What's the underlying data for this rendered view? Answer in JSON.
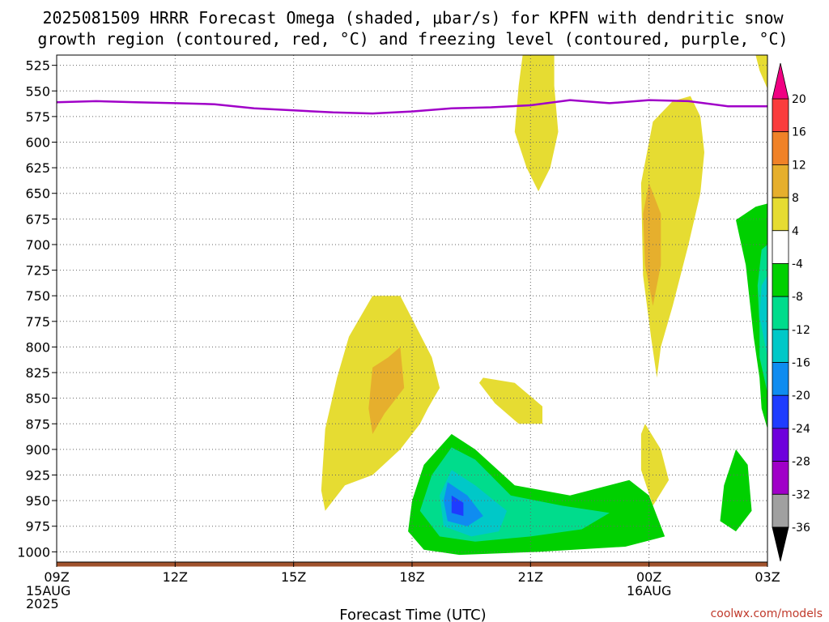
{
  "title_line1": "2025081509 HRRR Forecast Omega (shaded, μbar/s) for KPFN with dendritic snow",
  "title_line2": "growth region (contoured, red, °C) and freezing level (contoured, purple, °C)",
  "xlabel": "Forecast Time (UTC)",
  "credit": "coolwx.com/models",
  "chart_data": {
    "type": "contour",
    "title": "2025081509 HRRR Forecast Omega (shaded, μbar/s) for KPFN with dendritic snow growth region (contoured, red, °C) and freezing level (contoured, purple, °C)",
    "xlabel": "Forecast Time (UTC)",
    "ylabel": "",
    "xlim": [
      0,
      18
    ],
    "ylim": [
      1010,
      515
    ],
    "y_ticks": [
      525,
      550,
      575,
      600,
      625,
      650,
      675,
      700,
      725,
      750,
      775,
      800,
      825,
      850,
      875,
      900,
      925,
      950,
      975,
      1000
    ],
    "x_ticks": [
      {
        "x": 0,
        "label": "09Z",
        "sub": [
          "15AUG",
          "2025"
        ]
      },
      {
        "x": 3,
        "label": "12Z",
        "sub": []
      },
      {
        "x": 6,
        "label": "15Z",
        "sub": []
      },
      {
        "x": 9,
        "label": "18Z",
        "sub": []
      },
      {
        "x": 12,
        "label": "21Z",
        "sub": []
      },
      {
        "x": 15,
        "label": "00Z",
        "sub": [
          "16AUG"
        ]
      },
      {
        "x": 18,
        "label": "03Z",
        "sub": []
      }
    ],
    "freezing_level": {
      "x": [
        0,
        1,
        2,
        3,
        4,
        5,
        6,
        7,
        8,
        9,
        10,
        11,
        12,
        13,
        14,
        15,
        16,
        17,
        18
      ],
      "y": [
        561,
        560,
        561,
        562,
        563,
        567,
        569,
        571,
        572,
        570,
        567,
        566,
        564,
        559,
        562,
        559,
        560,
        565,
        565
      ]
    },
    "terrain_pressure": 1012,
    "omega_levels": [
      -36,
      -32,
      -28,
      -24,
      -20,
      -16,
      -12,
      -8,
      -4,
      4,
      8,
      12,
      16,
      20
    ],
    "omega_colors": [
      "#000000",
      "#a0a0a0",
      "#a000c8",
      "#6e00dc",
      "#1e3cff",
      "#0f8cf0",
      "#00c8c8",
      "#00dc8c",
      "#00d000",
      "#ffffff",
      "#e6dc32",
      "#e6af2d",
      "#f08228",
      "#fa3c3c",
      "#f00082"
    ],
    "omega_regions": [
      {
        "name": "upward 4-8 near 20Z upper",
        "level": 4,
        "points": [
          [
            11.8,
            515
          ],
          [
            12.6,
            515
          ],
          [
            12.6,
            545
          ],
          [
            12.7,
            590
          ],
          [
            12.5,
            625
          ],
          [
            12.2,
            648
          ],
          [
            11.9,
            625
          ],
          [
            11.6,
            590
          ],
          [
            11.7,
            545
          ]
        ]
      },
      {
        "name": "upward 4-8 near 03Z top",
        "level": 4,
        "points": [
          [
            17.7,
            515
          ],
          [
            18,
            515
          ],
          [
            18,
            548
          ],
          [
            17.8,
            530
          ]
        ]
      },
      {
        "name": "upward 4-8 near 00Z-01Z",
        "level": 4,
        "points": [
          [
            16.05,
            555
          ],
          [
            16.3,
            575
          ],
          [
            16.4,
            610
          ],
          [
            16.3,
            650
          ],
          [
            16.0,
            700
          ],
          [
            15.6,
            760
          ],
          [
            15.3,
            800
          ],
          [
            15.2,
            830
          ],
          [
            15.05,
            790
          ],
          [
            14.85,
            730
          ],
          [
            14.8,
            640
          ],
          [
            15.1,
            580
          ],
          [
            15.6,
            560
          ]
        ]
      },
      {
        "name": "upward 8-12 near 00Z",
        "level": 8,
        "points": [
          [
            15.0,
            640
          ],
          [
            15.3,
            670
          ],
          [
            15.3,
            720
          ],
          [
            15.1,
            760
          ],
          [
            14.9,
            720
          ],
          [
            14.85,
            670
          ]
        ]
      },
      {
        "name": "upward 4-8 near 17Z",
        "level": 4,
        "points": [
          [
            8.0,
            750
          ],
          [
            8.7,
            750
          ],
          [
            9.5,
            810
          ],
          [
            9.7,
            840
          ],
          [
            9.4,
            860
          ],
          [
            9.2,
            875
          ],
          [
            8.7,
            900
          ],
          [
            8.0,
            925
          ],
          [
            7.3,
            935
          ],
          [
            6.8,
            960
          ],
          [
            6.7,
            940
          ],
          [
            6.8,
            880
          ],
          [
            7.1,
            830
          ],
          [
            7.4,
            790
          ]
        ]
      },
      {
        "name": "upward 8-12 near 17Z",
        "level": 8,
        "points": [
          [
            8.7,
            800
          ],
          [
            8.8,
            840
          ],
          [
            8.3,
            865
          ],
          [
            8.0,
            885
          ],
          [
            7.9,
            860
          ],
          [
            8.0,
            820
          ],
          [
            8.4,
            810
          ]
        ]
      },
      {
        "name": "upward 4-8 near 20Z low",
        "level": 4,
        "points": [
          [
            10.8,
            830
          ],
          [
            11.6,
            835
          ],
          [
            12.3,
            858
          ],
          [
            12.3,
            875
          ],
          [
            11.7,
            875
          ],
          [
            11.1,
            855
          ],
          [
            10.7,
            835
          ]
        ]
      },
      {
        "name": "upward 4-8 near 00Z low",
        "level": 4,
        "points": [
          [
            14.9,
            875
          ],
          [
            15.3,
            900
          ],
          [
            15.5,
            930
          ],
          [
            15.1,
            955
          ],
          [
            14.8,
            920
          ],
          [
            14.8,
            885
          ]
        ]
      },
      {
        "name": "downward -4 to -8 near 03Z",
        "level": -4,
        "points": [
          [
            17.7,
            663
          ],
          [
            18,
            660
          ],
          [
            18,
            880
          ],
          [
            17.85,
            860
          ],
          [
            17.8,
            830
          ],
          [
            17.65,
            790
          ],
          [
            17.45,
            720
          ],
          [
            17.2,
            676
          ]
        ]
      },
      {
        "name": "downward -8 to -12 near 03Z",
        "level": -8,
        "points": [
          [
            17.85,
            705
          ],
          [
            18,
            700
          ],
          [
            18,
            845
          ],
          [
            17.8,
            810
          ],
          [
            17.8,
            780
          ],
          [
            17.75,
            740
          ]
        ]
      },
      {
        "name": "downward -12 to -16 near 03Z",
        "level": -12,
        "points": [
          [
            17.85,
            740
          ],
          [
            18,
            730
          ],
          [
            18,
            810
          ],
          [
            17.9,
            790
          ],
          [
            17.8,
            770
          ]
        ]
      },
      {
        "name": "downward -4 to -8 near 02Z",
        "level": -4,
        "points": [
          [
            17.2,
            900
          ],
          [
            17.5,
            915
          ],
          [
            17.6,
            960
          ],
          [
            17.2,
            980
          ],
          [
            16.8,
            970
          ],
          [
            16.9,
            935
          ]
        ]
      },
      {
        "name": "downward -4 to -8 near 19Z",
        "level": -4,
        "points": [
          [
            10.0,
            885
          ],
          [
            10.6,
            900
          ],
          [
            11.6,
            935
          ],
          [
            13.0,
            945
          ],
          [
            14.5,
            930
          ],
          [
            15.0,
            945
          ],
          [
            15.4,
            985
          ],
          [
            14.4,
            995
          ],
          [
            12.2,
            1000
          ],
          [
            10.2,
            1003
          ],
          [
            9.3,
            998
          ],
          [
            8.9,
            980
          ],
          [
            9.0,
            950
          ],
          [
            9.3,
            915
          ]
        ]
      },
      {
        "name": "downward -8 to -12 near 19Z",
        "level": -8,
        "points": [
          [
            10.0,
            898
          ],
          [
            10.6,
            910
          ],
          [
            11.5,
            945
          ],
          [
            12.8,
            955
          ],
          [
            14.0,
            962
          ],
          [
            13.3,
            978
          ],
          [
            12.0,
            985
          ],
          [
            10.6,
            990
          ],
          [
            9.7,
            985
          ],
          [
            9.2,
            960
          ],
          [
            9.5,
            925
          ]
        ]
      },
      {
        "name": "downward -12 to -16 near 19Z",
        "level": -12,
        "points": [
          [
            10.0,
            920
          ],
          [
            10.6,
            935
          ],
          [
            11.4,
            960
          ],
          [
            11.2,
            980
          ],
          [
            10.5,
            985
          ],
          [
            9.8,
            975
          ],
          [
            9.7,
            945
          ]
        ]
      },
      {
        "name": "downward -16 to -20 near 19Z",
        "level": -16,
        "points": [
          [
            9.9,
            932
          ],
          [
            10.4,
            945
          ],
          [
            10.8,
            965
          ],
          [
            10.4,
            975
          ],
          [
            9.9,
            970
          ],
          [
            9.8,
            950
          ]
        ]
      },
      {
        "name": "downward -20 to -24 near 19Z",
        "level": -20,
        "points": [
          [
            10.0,
            945
          ],
          [
            10.3,
            952
          ],
          [
            10.3,
            965
          ],
          [
            10.0,
            962
          ]
        ]
      }
    ],
    "colorbar": {
      "labels": [
        "20",
        "16",
        "12",
        "8",
        "4",
        "-4",
        "-8",
        "-12",
        "-16",
        "-20",
        "-24",
        "-28",
        "-32",
        "-36"
      ]
    },
    "grid": true
  }
}
